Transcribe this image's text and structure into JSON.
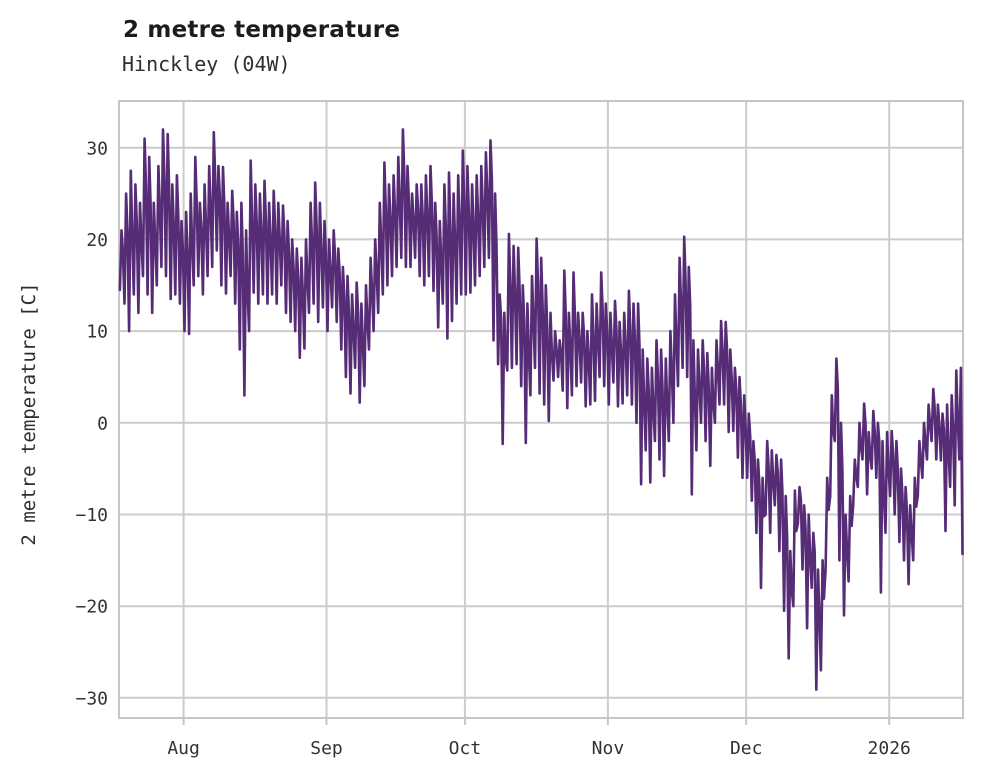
{
  "header": {
    "title": "2 metre temperature",
    "subtitle": "Hinckley (04W)"
  },
  "chart_data": {
    "type": "line",
    "title": "2 metre temperature",
    "subtitle": "Hinckley (04W)",
    "ylabel": "2 metre temperature [C]",
    "xlabel": "",
    "series_name": "2 metre temperature",
    "line_color": "#562c76",
    "grid": true,
    "grid_color": "#cccccc",
    "border_color": "#c6c6c6",
    "legend": "none",
    "y_ticks": [
      -30,
      -20,
      -10,
      0,
      10,
      20,
      30
    ],
    "ylim": [
      -32.2,
      35.1
    ],
    "x_tick_labels": [
      "Aug",
      "Sep",
      "Oct",
      "Nov",
      "Dec",
      "2026"
    ],
    "x_tick_days": [
      14,
      45,
      75,
      106,
      136,
      167
    ],
    "xlim_days": [
      0,
      183
    ],
    "x_start_note": "day 0 = mid-July 2025, one [min,max] pair per day",
    "daily_min_max": [
      [
        14.5,
        21
      ],
      [
        13,
        25
      ],
      [
        10,
        27.5
      ],
      [
        14,
        26
      ],
      [
        12,
        24
      ],
      [
        16,
        31
      ],
      [
        14,
        29
      ],
      [
        12,
        24
      ],
      [
        15,
        28
      ],
      [
        17,
        32
      ],
      [
        16,
        31.5
      ],
      [
        13.5,
        26
      ],
      [
        14,
        27
      ],
      [
        13,
        22
      ],
      [
        10,
        23
      ],
      [
        9.7,
        25
      ],
      [
        15,
        29
      ],
      [
        16,
        24
      ],
      [
        14,
        26
      ],
      [
        16,
        28
      ],
      [
        17,
        31.7
      ],
      [
        18.8,
        28
      ],
      [
        15,
        27.9
      ],
      [
        14.1,
        24
      ],
      [
        16,
        25.3
      ],
      [
        13,
        23
      ],
      [
        8,
        24
      ],
      [
        3,
        21
      ],
      [
        10,
        28.6
      ],
      [
        14.2,
        26
      ],
      [
        13,
        25
      ],
      [
        14,
        26.4
      ],
      [
        13,
        24
      ],
      [
        14,
        25.3
      ],
      [
        13,
        24
      ],
      [
        15,
        23.7
      ],
      [
        12,
        22
      ],
      [
        11,
        20
      ],
      [
        10,
        19
      ],
      [
        7.1,
        18
      ],
      [
        8.1,
        20
      ],
      [
        12,
        24
      ],
      [
        13,
        26.2
      ],
      [
        11,
        24
      ],
      [
        12.6,
        22
      ],
      [
        10,
        20
      ],
      [
        12.6,
        21
      ],
      [
        11,
        19
      ],
      [
        8,
        17
      ],
      [
        5,
        16
      ],
      [
        3.2,
        14
      ],
      [
        6,
        15.3
      ],
      [
        2.2,
        13
      ],
      [
        4,
        15
      ],
      [
        8,
        18
      ],
      [
        10,
        20
      ],
      [
        12,
        24
      ],
      [
        14,
        28.4
      ],
      [
        15,
        26
      ],
      [
        16,
        27
      ],
      [
        17,
        29
      ],
      [
        18,
        32
      ],
      [
        17,
        28
      ],
      [
        17,
        25
      ],
      [
        18,
        26
      ],
      [
        16,
        26
      ],
      [
        15,
        27
      ],
      [
        16,
        28
      ],
      [
        14.4,
        24
      ],
      [
        10.4,
        22
      ],
      [
        13,
        26
      ],
      [
        9.2,
        27.3
      ],
      [
        11.1,
        25
      ],
      [
        13,
        27
      ],
      [
        14,
        29.7
      ],
      [
        14,
        28
      ],
      [
        14.2,
        26
      ],
      [
        15,
        27
      ],
      [
        16,
        28
      ],
      [
        17,
        29.5
      ],
      [
        18,
        30.8
      ],
      [
        9,
        25
      ],
      [
        6.4,
        14
      ],
      [
        -2.3,
        12
      ],
      [
        5.7,
        20.6
      ],
      [
        6,
        19.3
      ],
      [
        6.4,
        19.1
      ],
      [
        4,
        15
      ],
      [
        -2.2,
        13
      ],
      [
        3,
        16
      ],
      [
        6,
        20.1
      ],
      [
        3.2,
        18
      ],
      [
        2,
        15
      ],
      [
        0.2,
        12
      ],
      [
        4.6,
        10
      ],
      [
        5,
        9
      ],
      [
        3.5,
        16.6
      ],
      [
        1.6,
        12
      ],
      [
        3,
        16.4
      ],
      [
        4,
        12
      ],
      [
        4.4,
        12
      ],
      [
        1.8,
        10
      ],
      [
        2,
        14
      ],
      [
        2.4,
        13
      ],
      [
        5,
        16.4
      ],
      [
        4,
        13
      ],
      [
        2,
        12
      ],
      [
        4.4,
        13.3
      ],
      [
        1.8,
        11
      ],
      [
        2.1,
        12
      ],
      [
        3,
        14.4
      ],
      [
        2,
        13
      ],
      [
        0,
        13
      ],
      [
        -6.7,
        8
      ],
      [
        -3,
        7
      ],
      [
        -6.5,
        6
      ],
      [
        -2,
        9
      ],
      [
        -4,
        8
      ],
      [
        -5.8,
        7
      ],
      [
        -2,
        10
      ],
      [
        0,
        14
      ],
      [
        4,
        18
      ],
      [
        6,
        20.3
      ],
      [
        5,
        17
      ],
      [
        -7.8,
        9
      ],
      [
        -3,
        8
      ],
      [
        0,
        9
      ],
      [
        -2,
        7.6
      ],
      [
        -4.7,
        6
      ],
      [
        0,
        9
      ],
      [
        2,
        11.1
      ],
      [
        2,
        11
      ],
      [
        -1,
        8
      ],
      [
        -0.9,
        6
      ],
      [
        -3.8,
        5
      ],
      [
        -6,
        3
      ],
      [
        -6,
        1
      ],
      [
        -8.5,
        -2
      ],
      [
        -12,
        -4
      ],
      [
        -18,
        -6
      ],
      [
        -10,
        -2
      ],
      [
        -12,
        -3
      ],
      [
        -9,
        -3.5
      ],
      [
        -14,
        -4
      ],
      [
        -20.5,
        -8
      ],
      [
        -25.7,
        -14
      ],
      [
        -20,
        -7.4
      ],
      [
        -11,
        -7
      ],
      [
        -16,
        -9
      ],
      [
        -22.4,
        -10
      ],
      [
        -18,
        -12
      ],
      [
        -29.1,
        -16
      ],
      [
        -27,
        -15
      ],
      [
        -16,
        -6
      ],
      [
        -8,
        3
      ],
      [
        -2,
        7
      ],
      [
        -15,
        0
      ],
      [
        -21,
        -10
      ],
      [
        -17.3,
        -8
      ],
      [
        -9,
        -4
      ],
      [
        -7,
        0
      ],
      [
        -4,
        2.1
      ],
      [
        -7.8,
        -1
      ],
      [
        -5,
        1.3
      ],
      [
        -6,
        0
      ],
      [
        -18.5,
        -2
      ],
      [
        -12,
        -1
      ],
      [
        -8,
        -0.9
      ],
      [
        -10,
        -2
      ],
      [
        -13,
        -5
      ],
      [
        -15,
        -7
      ],
      [
        -17.6,
        -9
      ],
      [
        -15,
        -6
      ],
      [
        -8,
        -2
      ],
      [
        -6,
        0
      ],
      [
        -4,
        2
      ],
      [
        -2,
        3.7
      ],
      [
        -4,
        2
      ],
      [
        -4.1,
        1
      ],
      [
        -11.8,
        2
      ],
      [
        -7,
        3
      ],
      [
        -9,
        5.7
      ],
      [
        -4,
        6
      ]
    ],
    "end_point": {
      "day": 182.9,
      "value": -14.3
    }
  }
}
